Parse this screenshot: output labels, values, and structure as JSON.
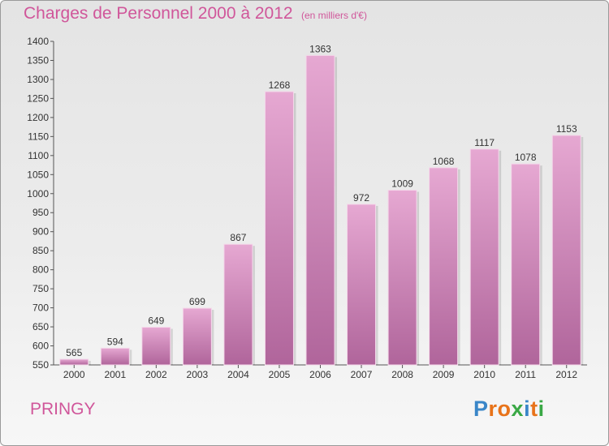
{
  "title": "Charges de Personnel 2000 à 2012",
  "subtitle": "(en milliers d'€)",
  "place": "PRINGY",
  "logo": {
    "letters": [
      "P",
      "r",
      "o",
      "x",
      "i",
      "t",
      "i"
    ],
    "colors": [
      "#3a86c8",
      "#e8731a",
      "#e8731a",
      "#3aa845",
      "#3a86c8",
      "#e8731a",
      "#3aa845"
    ]
  },
  "colors": {
    "bar_top": "#e6a8d2",
    "bar_bottom": "#b0659b",
    "accent": "#d0569a"
  },
  "chart_data": {
    "type": "bar",
    "categories": [
      "2000",
      "2001",
      "2002",
      "2003",
      "2004",
      "2005",
      "2006",
      "2007",
      "2008",
      "2009",
      "2010",
      "2011",
      "2012"
    ],
    "values": [
      565,
      594,
      649,
      699,
      867,
      1268,
      1363,
      972,
      1009,
      1068,
      1117,
      1078,
      1153
    ],
    "title": "Charges de Personnel 2000 à 2012",
    "subtitle": "(en milliers d'€)",
    "ylim": [
      550,
      1400
    ],
    "yticks": [
      550,
      600,
      650,
      700,
      750,
      800,
      850,
      900,
      950,
      1000,
      1050,
      1100,
      1150,
      1200,
      1250,
      1300,
      1350,
      1400
    ],
    "grid": false,
    "legend": "none"
  }
}
